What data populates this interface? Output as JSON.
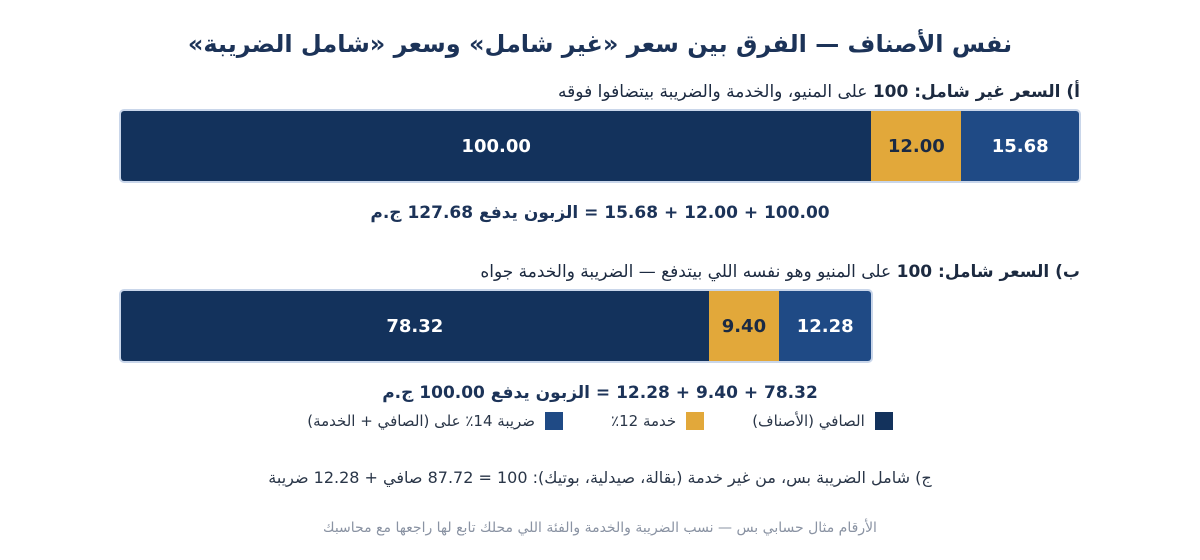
{
  "title": "نفس الأصناف — الفرق بين سعر «غير شامل» وسعر «شامل الضريبة»",
  "section_a": {
    "label_bold": "أ) السعر غير شامل:",
    "label_rest_bold": "100",
    "label_rest": "على المنيو، والخدمة والضريبة بيتضافوا فوقه",
    "segments": [
      {
        "name": "net",
        "value": 100.0,
        "text": "100.00"
      },
      {
        "name": "service",
        "value": 12.0,
        "text": "12.00"
      },
      {
        "name": "tax",
        "value": 15.68,
        "text": "15.68"
      }
    ],
    "sum_text": "100.00 + 12.00 + 15.68 = الزبون يدفع 127.68 ج.م"
  },
  "section_b": {
    "label_bold": "ب) السعر شامل:",
    "label_rest_bold": "100",
    "label_rest": "على المنيو وهو نفسه اللي بيتدفع — الضريبة والخدمة جواه",
    "segments": [
      {
        "name": "net",
        "value": 78.32,
        "text": "78.32"
      },
      {
        "name": "service",
        "value": 9.4,
        "text": "9.40"
      },
      {
        "name": "tax",
        "value": 12.28,
        "text": "12.28"
      }
    ],
    "sum_text": "78.32 + 9.40 + 12.28 = الزبون يدفع 100.00 ج.م"
  },
  "legend": [
    {
      "label": "الصافي (الأصناف)",
      "color": "#13325c"
    },
    {
      "label": "خدمة 12٪",
      "color": "#e2a83a"
    },
    {
      "label": "ضريبة 14٪ على (الصافي + الخدمة)",
      "color": "#1f4a85"
    }
  ],
  "note": "ج) شامل الضريبة بس، من غير خدمة (بقالة، صيدلية، بوتيك): 100 = 87.72 صافي + 12.28 ضريبة",
  "footer": "الأرقام مثال حسابي بس — نسب الضريبة والخدمة والفئة اللي محلك تابع لها راجعها مع محاسبك"
}
